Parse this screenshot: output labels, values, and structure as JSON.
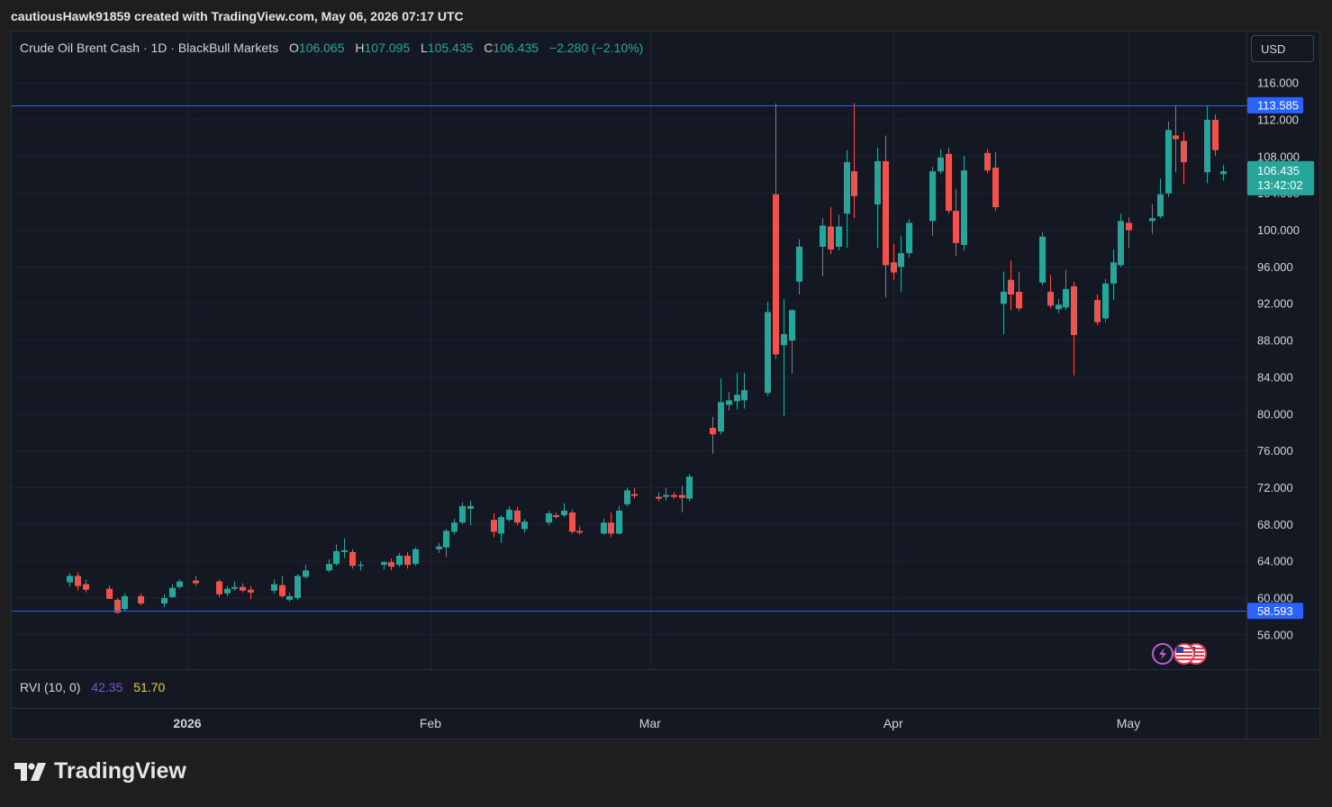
{
  "caption": "cautiousHawk91859 created with TradingView.com, May 06, 2026 07:17 UTC",
  "legend": {
    "symbol": "Crude Oil Brent Cash · 1D · BlackBull Markets",
    "open_label": "O",
    "open": "106.065",
    "high_label": "H",
    "high": "107.095",
    "low_label": "L",
    "low": "105.435",
    "close_label": "C",
    "close": "106.435",
    "change": "−2.280 (−2.10%)"
  },
  "currency_button": "USD",
  "indicator": {
    "name": "RVI (10, 0)",
    "value1": "42.35",
    "value2": "51.70"
  },
  "branding": "TradingView",
  "colors": {
    "up": "#26a69a",
    "down": "#ef5350",
    "hline": "#2962ff",
    "price_badge": "#26a69a"
  },
  "icons": [
    "lightning-icon",
    "us-flag-icon",
    "us-flag-icon"
  ],
  "chart_data": {
    "type": "candlestick",
    "y_range": [
      52.5,
      119.5
    ],
    "y_ticks": [
      "116.000",
      "112.000",
      "108.000",
      "104.000",
      "100.000",
      "96.000",
      "92.000",
      "88.000",
      "84.000",
      "80.000",
      "76.000",
      "72.000",
      "68.000",
      "64.000",
      "60.000",
      "56.000"
    ],
    "x_labels": [
      "2026",
      "Feb",
      "Mar",
      "Apr",
      "May"
    ],
    "horizontal_lines": [
      {
        "value": 113.585,
        "label": "113.585"
      },
      {
        "value": 58.593,
        "label": "58.593"
      }
    ],
    "last_price": {
      "label": "106.435",
      "countdown": "13:42:02",
      "value": 106.435
    },
    "candles": [
      {
        "d": "2025-12-17",
        "o": 61.7,
        "h": 62.7,
        "l": 61.2,
        "c": 62.4
      },
      {
        "d": "2025-12-18",
        "o": 62.4,
        "h": 62.8,
        "l": 60.8,
        "c": 61.3
      },
      {
        "d": "2025-12-19",
        "o": 61.5,
        "h": 62.0,
        "l": 60.6,
        "c": 60.9
      },
      {
        "d": "2025-12-22",
        "o": 61.0,
        "h": 61.4,
        "l": 59.9,
        "c": 59.9
      },
      {
        "d": "2025-12-23",
        "o": 59.8,
        "h": 60.0,
        "l": 58.3,
        "c": 58.4
      },
      {
        "d": "2025-12-24",
        "o": 58.8,
        "h": 60.5,
        "l": 58.6,
        "c": 60.2
      },
      {
        "d": "2025-12-26",
        "o": 60.2,
        "h": 60.5,
        "l": 59.2,
        "c": 59.4
      },
      {
        "d": "2025-12-29",
        "o": 59.4,
        "h": 60.4,
        "l": 59.0,
        "c": 60.0
      },
      {
        "d": "2025-12-30",
        "o": 60.1,
        "h": 61.5,
        "l": 60.0,
        "c": 61.1
      },
      {
        "d": "2025-12-31",
        "o": 61.2,
        "h": 62.0,
        "l": 61.0,
        "c": 61.8
      },
      {
        "d": "2026-01-02",
        "o": 61.9,
        "h": 62.4,
        "l": 61.3,
        "c": 61.6
      },
      {
        "d": "2026-01-05",
        "o": 61.8,
        "h": 62.0,
        "l": 60.1,
        "c": 60.4
      },
      {
        "d": "2026-01-06",
        "o": 60.5,
        "h": 61.3,
        "l": 60.2,
        "c": 61.0
      },
      {
        "d": "2026-01-07",
        "o": 61.0,
        "h": 61.8,
        "l": 60.8,
        "c": 61.2
      },
      {
        "d": "2026-01-08",
        "o": 61.2,
        "h": 61.6,
        "l": 60.6,
        "c": 60.8
      },
      {
        "d": "2026-01-09",
        "o": 60.9,
        "h": 61.3,
        "l": 59.9,
        "c": 60.6
      },
      {
        "d": "2026-01-12",
        "o": 60.8,
        "h": 62.0,
        "l": 60.5,
        "c": 61.5
      },
      {
        "d": "2026-01-13",
        "o": 61.4,
        "h": 62.4,
        "l": 60.0,
        "c": 60.2
      },
      {
        "d": "2026-01-14",
        "o": 59.8,
        "h": 60.6,
        "l": 59.6,
        "c": 60.2
      },
      {
        "d": "2026-01-15",
        "o": 60.0,
        "h": 62.6,
        "l": 59.8,
        "c": 62.4
      },
      {
        "d": "2026-01-16",
        "o": 62.3,
        "h": 63.6,
        "l": 62.1,
        "c": 63.0
      },
      {
        "d": "2026-01-19",
        "o": 63.0,
        "h": 64.2,
        "l": 62.8,
        "c": 63.7
      },
      {
        "d": "2026-01-20",
        "o": 63.7,
        "h": 65.8,
        "l": 63.5,
        "c": 65.1
      },
      {
        "d": "2026-01-21",
        "o": 65.0,
        "h": 66.5,
        "l": 64.3,
        "c": 65.2
      },
      {
        "d": "2026-01-22",
        "o": 65.0,
        "h": 65.3,
        "l": 63.2,
        "c": 63.5
      },
      {
        "d": "2026-01-23",
        "o": 63.5,
        "h": 64.0,
        "l": 63.0,
        "c": 63.6
      },
      {
        "d": "2026-01-26",
        "o": 63.6,
        "h": 64.0,
        "l": 63.1,
        "c": 63.9
      },
      {
        "d": "2026-01-27",
        "o": 63.9,
        "h": 64.3,
        "l": 63.0,
        "c": 63.4
      },
      {
        "d": "2026-01-28",
        "o": 63.6,
        "h": 64.9,
        "l": 63.4,
        "c": 64.6
      },
      {
        "d": "2026-01-29",
        "o": 64.6,
        "h": 65.0,
        "l": 63.2,
        "c": 63.6
      },
      {
        "d": "2026-01-30",
        "o": 63.7,
        "h": 65.5,
        "l": 63.5,
        "c": 65.3
      },
      {
        "d": "2026-02-02",
        "o": 65.3,
        "h": 66.0,
        "l": 64.9,
        "c": 65.6
      },
      {
        "d": "2026-02-03",
        "o": 65.5,
        "h": 67.5,
        "l": 64.4,
        "c": 67.3
      },
      {
        "d": "2026-02-04",
        "o": 67.2,
        "h": 68.6,
        "l": 66.9,
        "c": 68.2
      },
      {
        "d": "2026-02-05",
        "o": 68.2,
        "h": 70.4,
        "l": 68.0,
        "c": 70.0
      },
      {
        "d": "2026-02-06",
        "o": 69.7,
        "h": 70.6,
        "l": 67.9,
        "c": 70.0
      },
      {
        "d": "2026-02-09",
        "o": 68.5,
        "h": 69.2,
        "l": 66.6,
        "c": 67.2
      },
      {
        "d": "2026-02-10",
        "o": 67.0,
        "h": 69.0,
        "l": 66.0,
        "c": 68.8
      },
      {
        "d": "2026-02-11",
        "o": 68.5,
        "h": 70.0,
        "l": 68.3,
        "c": 69.6
      },
      {
        "d": "2026-02-12",
        "o": 69.5,
        "h": 69.9,
        "l": 67.9,
        "c": 68.2
      },
      {
        "d": "2026-02-13",
        "o": 67.5,
        "h": 68.6,
        "l": 67.1,
        "c": 68.3
      },
      {
        "d": "2026-02-16",
        "o": 68.2,
        "h": 69.5,
        "l": 67.9,
        "c": 69.2
      },
      {
        "d": "2026-02-17",
        "o": 69.0,
        "h": 69.3,
        "l": 68.6,
        "c": 68.8
      },
      {
        "d": "2026-02-18",
        "o": 69.0,
        "h": 70.3,
        "l": 68.8,
        "c": 69.5
      },
      {
        "d": "2026-02-19",
        "o": 69.3,
        "h": 69.6,
        "l": 67.0,
        "c": 67.2
      },
      {
        "d": "2026-02-20",
        "o": 67.3,
        "h": 67.8,
        "l": 66.9,
        "c": 67.1
      },
      {
        "d": "2026-02-23",
        "o": 67.0,
        "h": 68.6,
        "l": 66.9,
        "c": 68.2
      },
      {
        "d": "2026-02-24",
        "o": 68.2,
        "h": 69.3,
        "l": 66.6,
        "c": 67.0
      },
      {
        "d": "2026-02-25",
        "o": 67.0,
        "h": 70.0,
        "l": 66.9,
        "c": 69.5
      },
      {
        "d": "2026-02-26",
        "o": 70.2,
        "h": 72.0,
        "l": 70.0,
        "c": 71.7
      },
      {
        "d": "2026-02-27",
        "o": 71.3,
        "h": 72.0,
        "l": 70.8,
        "c": 71.1
      },
      {
        "d": "2026-03-02",
        "o": 71.0,
        "h": 71.5,
        "l": 70.5,
        "c": 70.8
      },
      {
        "d": "2026-03-03",
        "o": 71.0,
        "h": 72.0,
        "l": 70.6,
        "c": 71.2
      },
      {
        "d": "2026-03-04",
        "o": 71.2,
        "h": 71.5,
        "l": 70.8,
        "c": 71.0
      },
      {
        "d": "2026-03-05",
        "o": 71.2,
        "h": 72.2,
        "l": 69.3,
        "c": 70.9
      },
      {
        "d": "2026-03-06",
        "o": 70.8,
        "h": 73.5,
        "l": 70.5,
        "c": 73.2
      },
      {
        "d": "2026-03-09",
        "o": 78.5,
        "h": 79.7,
        "l": 75.7,
        "c": 77.8
      },
      {
        "d": "2026-03-10",
        "o": 78.1,
        "h": 83.9,
        "l": 77.8,
        "c": 81.3
      },
      {
        "d": "2026-03-11",
        "o": 81.0,
        "h": 82.4,
        "l": 80.4,
        "c": 81.5
      },
      {
        "d": "2026-03-12",
        "o": 81.4,
        "h": 84.5,
        "l": 80.5,
        "c": 82.1
      },
      {
        "d": "2026-03-13",
        "o": 81.5,
        "h": 84.5,
        "l": 80.6,
        "c": 82.6
      },
      {
        "d": "2026-03-16",
        "o": 82.3,
        "h": 92.2,
        "l": 82.0,
        "c": 91.1
      },
      {
        "d": "2026-03-17",
        "o": 103.9,
        "h": 113.8,
        "l": 86.0,
        "c": 86.5
      },
      {
        "d": "2026-03-18",
        "o": 87.5,
        "h": 92.5,
        "l": 79.8,
        "c": 88.7
      },
      {
        "d": "2026-03-19",
        "o": 88.0,
        "h": 91.4,
        "l": 84.4,
        "c": 91.3
      },
      {
        "d": "2026-03-20",
        "o": 94.4,
        "h": 99.0,
        "l": 93.0,
        "c": 98.2
      },
      {
        "d": "2026-03-23",
        "o": 98.2,
        "h": 101.3,
        "l": 95.0,
        "c": 100.5
      },
      {
        "d": "2026-03-24",
        "o": 100.4,
        "h": 102.5,
        "l": 97.4,
        "c": 97.9
      },
      {
        "d": "2026-03-25",
        "o": 98.2,
        "h": 101.7,
        "l": 97.8,
        "c": 100.4
      },
      {
        "d": "2026-03-26",
        "o": 101.8,
        "h": 108.7,
        "l": 98.1,
        "c": 107.4
      },
      {
        "d": "2026-03-27",
        "o": 106.4,
        "h": 113.8,
        "l": 101.3,
        "c": 103.7
      },
      {
        "d": "2026-03-30",
        "o": 102.8,
        "h": 109.0,
        "l": 98.1,
        "c": 107.5
      },
      {
        "d": "2026-03-31",
        "o": 107.5,
        "h": 110.3,
        "l": 92.7,
        "c": 96.2
      },
      {
        "d": "2026-04-01",
        "o": 96.5,
        "h": 98.5,
        "l": 94.6,
        "c": 95.4
      },
      {
        "d": "2026-04-02",
        "o": 96.0,
        "h": 99.4,
        "l": 93.3,
        "c": 97.5
      },
      {
        "d": "2026-04-03",
        "o": 97.5,
        "h": 101.2,
        "l": 97.0,
        "c": 100.8
      },
      {
        "d": "2026-04-06",
        "o": 101.0,
        "h": 106.9,
        "l": 99.4,
        "c": 106.4
      },
      {
        "d": "2026-04-07",
        "o": 106.4,
        "h": 108.8,
        "l": 106.1,
        "c": 107.9
      },
      {
        "d": "2026-04-08",
        "o": 108.3,
        "h": 109.0,
        "l": 101.8,
        "c": 102.1
      },
      {
        "d": "2026-04-09",
        "o": 102.1,
        "h": 104.5,
        "l": 97.2,
        "c": 98.6
      },
      {
        "d": "2026-04-10",
        "o": 98.4,
        "h": 108.1,
        "l": 97.8,
        "c": 106.5
      },
      {
        "d": "2026-04-13",
        "o": 108.4,
        "h": 108.8,
        "l": 106.2,
        "c": 106.5
      },
      {
        "d": "2026-04-14",
        "o": 106.8,
        "h": 108.5,
        "l": 102.1,
        "c": 102.5
      },
      {
        "d": "2026-04-15",
        "o": 92.0,
        "h": 95.5,
        "l": 88.7,
        "c": 93.3
      },
      {
        "d": "2026-04-16",
        "o": 94.6,
        "h": 96.7,
        "l": 91.3,
        "c": 93.0
      },
      {
        "d": "2026-04-17",
        "o": 93.3,
        "h": 95.5,
        "l": 91.2,
        "c": 91.5
      },
      {
        "d": "2026-04-20",
        "o": 94.3,
        "h": 99.8,
        "l": 94.0,
        "c": 99.3
      },
      {
        "d": "2026-04-21",
        "o": 93.3,
        "h": 95.1,
        "l": 91.5,
        "c": 91.8
      },
      {
        "d": "2026-04-22",
        "o": 91.4,
        "h": 92.5,
        "l": 91.0,
        "c": 91.9
      },
      {
        "d": "2026-04-23",
        "o": 91.6,
        "h": 95.7,
        "l": 91.3,
        "c": 93.6
      },
      {
        "d": "2026-04-24",
        "o": 93.9,
        "h": 94.4,
        "l": 84.2,
        "c": 88.6
      },
      {
        "d": "2026-04-27",
        "o": 92.4,
        "h": 93.0,
        "l": 89.7,
        "c": 90.0
      },
      {
        "d": "2026-04-28",
        "o": 90.4,
        "h": 94.7,
        "l": 90.0,
        "c": 94.2
      },
      {
        "d": "2026-04-29",
        "o": 94.2,
        "h": 97.9,
        "l": 92.4,
        "c": 96.5
      },
      {
        "d": "2026-04-30",
        "o": 96.2,
        "h": 101.8,
        "l": 96.0,
        "c": 101.0
      },
      {
        "d": "2026-05-01",
        "o": 100.8,
        "h": 101.4,
        "l": 98.1,
        "c": 100.0
      },
      {
        "d": "2026-05-04",
        "o": 101.0,
        "h": 102.8,
        "l": 99.6,
        "c": 101.3
      },
      {
        "d": "2026-05-05",
        "o": 101.5,
        "h": 105.6,
        "l": 101.3,
        "c": 103.9
      },
      {
        "d": "2026-05-06",
        "o": 104.0,
        "h": 111.8,
        "l": 103.6,
        "c": 110.9
      },
      {
        "d": "2026-05-07",
        "o": 110.3,
        "h": 113.6,
        "l": 106.3,
        "c": 109.9
      },
      {
        "d": "2026-05-08",
        "o": 109.7,
        "h": 110.7,
        "l": 105.0,
        "c": 107.4
      },
      {
        "d": "2026-05-11",
        "o": 106.3,
        "h": 113.6,
        "l": 105.1,
        "c": 112.0
      },
      {
        "d": "2026-05-12",
        "o": 112.0,
        "h": 112.6,
        "l": 108.1,
        "c": 108.7
      },
      {
        "d": "2026-05-13",
        "o": 106.1,
        "h": 107.1,
        "l": 105.4,
        "c": 106.4
      }
    ]
  }
}
